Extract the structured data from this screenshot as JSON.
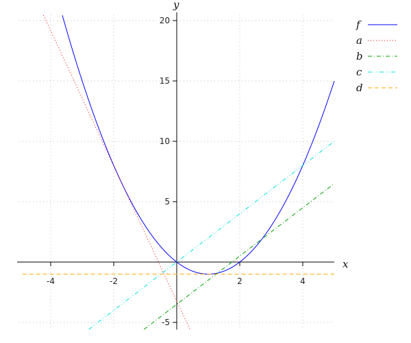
{
  "chart_data": {
    "type": "line",
    "xlabel": "x",
    "ylabel": "y",
    "xlim": [
      -5,
      5
    ],
    "ylim": [
      -5.6,
      20.5
    ],
    "grid": true,
    "legend_placement": "top-right",
    "xticks": [
      -4,
      -2,
      2,
      4
    ],
    "xtick_labels": [
      "-4",
      "-2",
      "2",
      "4"
    ],
    "yticks": [
      -5,
      5,
      10,
      15,
      20
    ],
    "ytick_labels": [
      "-5",
      "5",
      "10",
      "15",
      "20"
    ],
    "series": [
      {
        "name": "f",
        "expr": "x^2 - 2x",
        "color": "#0000ff",
        "dash": "solid"
      },
      {
        "name": "a",
        "expr": "-5.6x - 3.24",
        "color": "#ff0000",
        "dash": "dotted"
      },
      {
        "name": "b",
        "expr": "2x - 3.5",
        "color": "#00a000",
        "dash": "dashdot"
      },
      {
        "name": "c",
        "expr": "2x",
        "color": "#00e0e0",
        "dash": "dashdotdot"
      },
      {
        "name": "d",
        "expr": "-1",
        "color": "#ffa500",
        "dash": "dashed"
      }
    ]
  }
}
